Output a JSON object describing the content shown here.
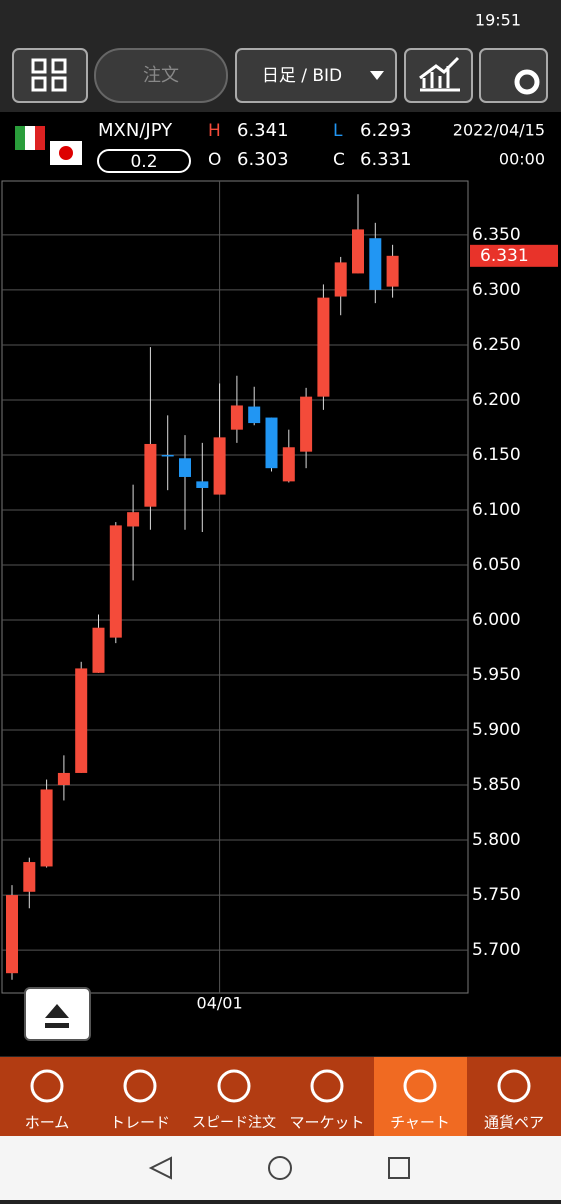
{
  "status_bar": {
    "time": "19:51"
  },
  "toolbar": {
    "order_button": "注文",
    "timeframe": "日足 / BID"
  },
  "header": {
    "pair": "MXN/JPY",
    "spread": 0.2,
    "high_label": "H",
    "high": 6.341,
    "low_label": "L",
    "low": 6.293,
    "open_label": "O",
    "open": 6.303,
    "close_label": "C",
    "close": 6.331,
    "date": "2022/04/15",
    "time": "00:00"
  },
  "chart_data": {
    "type": "candlestick",
    "categories": [
      null,
      null,
      null,
      null,
      null,
      null,
      null,
      null,
      null,
      null,
      null,
      null,
      "04/01",
      null,
      null,
      null,
      null,
      null,
      null,
      null,
      null,
      null,
      null
    ],
    "open": [
      5.679,
      5.753,
      5.776,
      5.85,
      5.861,
      5.952,
      5.984,
      6.085,
      6.103,
      6.15,
      6.147,
      6.126,
      6.114,
      6.173,
      6.194,
      6.184,
      6.126,
      6.153,
      6.203,
      6.294,
      6.315,
      6.347,
      6.303
    ],
    "high": [
      5.759,
      5.784,
      5.855,
      5.877,
      5.962,
      6.005,
      6.089,
      6.123,
      6.248,
      6.186,
      6.168,
      6.161,
      6.215,
      6.222,
      6.212,
      6.184,
      6.173,
      6.211,
      6.305,
      6.33,
      6.387,
      6.361,
      6.341
    ],
    "low": [
      5.673,
      5.738,
      5.775,
      5.836,
      5.861,
      5.952,
      5.979,
      6.036,
      6.082,
      6.118,
      6.082,
      6.08,
      6.114,
      6.161,
      6.177,
      6.135,
      6.125,
      6.138,
      6.191,
      6.277,
      6.315,
      6.288,
      6.293
    ],
    "close": [
      5.75,
      5.78,
      5.846,
      5.861,
      5.956,
      5.993,
      6.086,
      6.098,
      6.16,
      6.149,
      6.13,
      6.12,
      6.166,
      6.195,
      6.179,
      6.138,
      6.157,
      6.203,
      6.293,
      6.325,
      6.355,
      6.3,
      6.331
    ],
    "up_color": "#f44b3a",
    "down_color": "#2196f3",
    "ylim": [
      5.661,
      6.399
    ],
    "yticks": [
      {
        "value": 5.7,
        "label": "5.700"
      },
      {
        "value": 5.75,
        "label": "5.750"
      },
      {
        "value": 5.8,
        "label": "5.800"
      },
      {
        "value": 5.85,
        "label": "5.850"
      },
      {
        "value": 5.9,
        "label": "5.900"
      },
      {
        "value": 5.95,
        "label": "5.950"
      },
      {
        "value": 6.0,
        "label": "6.000"
      },
      {
        "value": 6.05,
        "label": "6.050"
      },
      {
        "value": 6.1,
        "label": "6.100"
      },
      {
        "value": 6.15,
        "label": "6.150"
      },
      {
        "value": 6.2,
        "label": "6.200"
      },
      {
        "value": 6.25,
        "label": "6.250"
      },
      {
        "value": 6.3,
        "label": "6.300"
      },
      {
        "value": 6.35,
        "label": "6.350"
      }
    ],
    "grid": true,
    "last_price": {
      "value": 6.331,
      "label": "6.331"
    }
  },
  "nav": [
    "ホーム",
    "トレード",
    "スピード注文",
    "マーケット",
    "チャート",
    "通貨ペア"
  ]
}
